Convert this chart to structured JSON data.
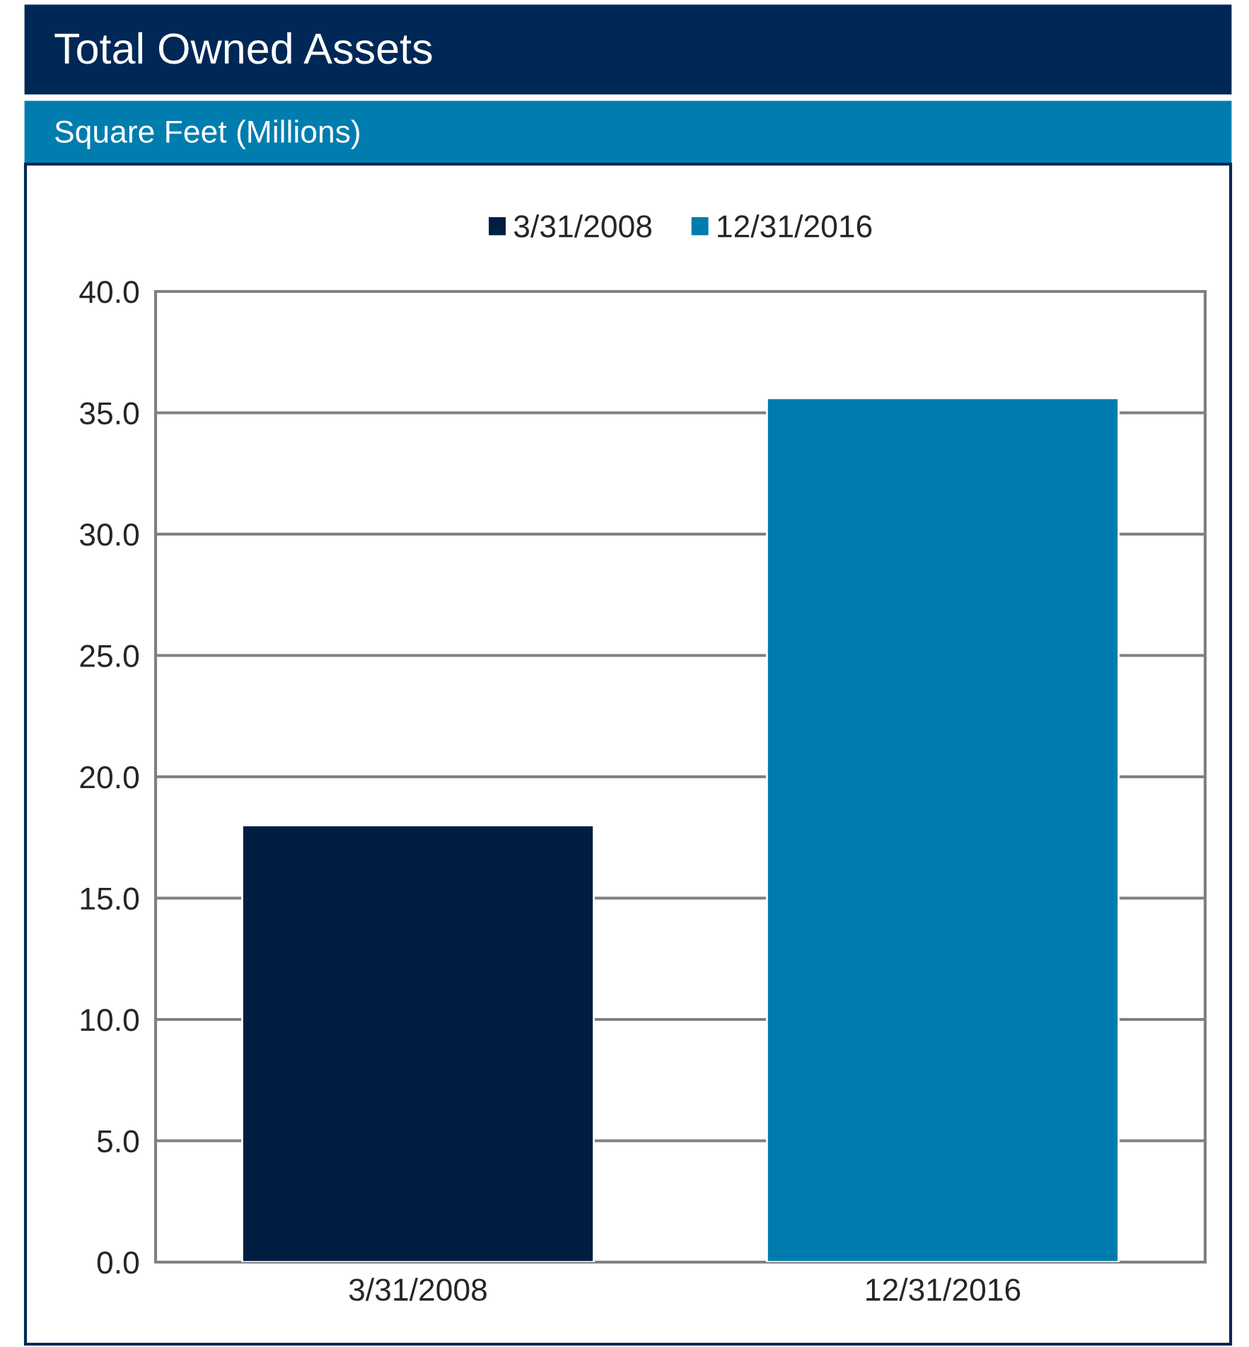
{
  "chart_data": {
    "type": "bar",
    "title": "Total Owned Assets",
    "subtitle": "Square Feet (Millions)",
    "categories": [
      "3/31/2008",
      "12/31/2016"
    ],
    "series": [
      {
        "name": "3/31/2008",
        "color": "#001e42",
        "values": [
          18.0,
          null
        ]
      },
      {
        "name": "12/31/2016",
        "color": "#007bad",
        "values": [
          null,
          35.6
        ]
      }
    ],
    "stacked": true,
    "ylim": [
      0,
      40
    ],
    "yticks": [
      {
        "value": 0,
        "label": "0.0"
      },
      {
        "value": 5,
        "label": "5.0"
      },
      {
        "value": 10,
        "label": "10.0"
      },
      {
        "value": 15,
        "label": "15.0"
      },
      {
        "value": 20,
        "label": "20.0"
      },
      {
        "value": 25,
        "label": "25.0"
      },
      {
        "value": 30,
        "label": "30.0"
      },
      {
        "value": 35,
        "label": "35.0"
      },
      {
        "value": 40,
        "label": "40.0"
      }
    ],
    "grid": "y",
    "legend": "top"
  }
}
